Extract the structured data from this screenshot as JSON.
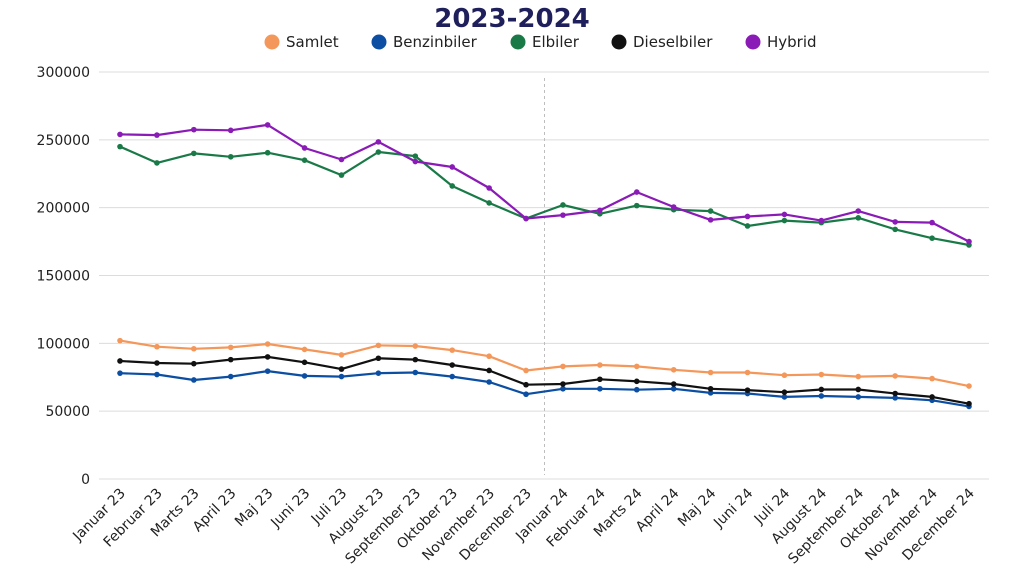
{
  "chart_data": {
    "type": "line",
    "title": "2023-2024",
    "xlabel": "",
    "ylabel": "",
    "ylim": [
      0,
      300000
    ],
    "yticks": [
      0,
      50000,
      100000,
      150000,
      200000,
      250000,
      300000
    ],
    "grid": true,
    "legend_position": "top-center",
    "categories": [
      "Januar 23",
      "Februar 23",
      "Marts 23",
      "April 23",
      "Maj 23",
      "Juni 23",
      "Juli 23",
      "August 23",
      "September 23",
      "Oktober 23",
      "November 23",
      "December 23",
      "Januar 24",
      "Februar 24",
      "Marts 24",
      "April 24",
      "Maj 24",
      "Juni 24",
      "Juli 24",
      "August 24",
      "September 24",
      "Oktober 24",
      "November 24",
      "December 24"
    ],
    "year_divider_after": "December 23",
    "series": [
      {
        "name": "Samlet",
        "color": "#f4975a",
        "values": [
          102000,
          97500,
          96000,
          97000,
          99500,
          95500,
          91500,
          98500,
          98000,
          95000,
          90500,
          80000,
          83000,
          84000,
          83000,
          80500,
          78500,
          78500,
          76500,
          77000,
          75500,
          76000,
          74000,
          68500
        ]
      },
      {
        "name": "Benzinbiler",
        "color": "#0b4ea2",
        "values": [
          78000,
          77000,
          73000,
          75500,
          79500,
          76000,
          75500,
          78000,
          78500,
          75500,
          71500,
          62500,
          66500,
          66500,
          65800,
          66500,
          63500,
          63000,
          60500,
          61200,
          60500,
          59800,
          58000,
          53500
        ]
      },
      {
        "name": "Elbiler",
        "color": "#1a7a47",
        "values": [
          245000,
          233000,
          240000,
          237500,
          240500,
          235000,
          224000,
          241000,
          238000,
          216000,
          203500,
          192000,
          202000,
          195500,
          201500,
          198500,
          197500,
          186500,
          190500,
          189000,
          192500,
          184000,
          177500,
          172500
        ]
      },
      {
        "name": "Dieselbiler",
        "color": "#111111",
        "values": [
          87000,
          85500,
          85000,
          88000,
          90000,
          86000,
          81000,
          89000,
          88000,
          84000,
          80000,
          69500,
          70000,
          73500,
          72000,
          70000,
          66500,
          65500,
          64000,
          66000,
          66000,
          63000,
          60500,
          55500
        ]
      },
      {
        "name": "Hybrid",
        "color": "#8a1bb6",
        "values": [
          254000,
          253500,
          257500,
          257000,
          261000,
          244000,
          235500,
          248500,
          234000,
          230000,
          214500,
          192000,
          194500,
          198000,
          211500,
          200500,
          191000,
          193500,
          195000,
          190500,
          197500,
          189500,
          189000,
          175000
        ]
      }
    ]
  }
}
